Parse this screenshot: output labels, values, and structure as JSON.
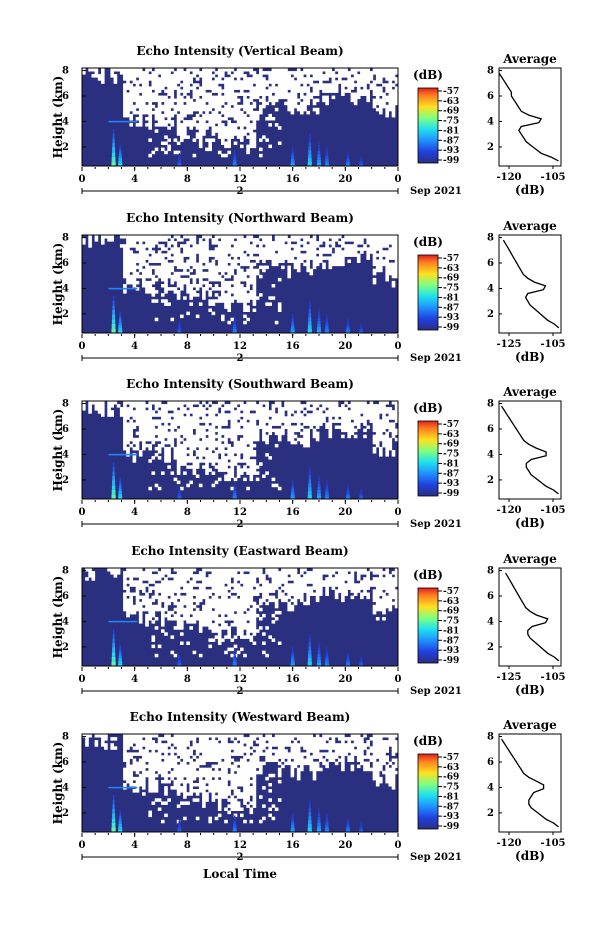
{
  "figure": {
    "xlabel": "Local Time",
    "date_label": "Sep 2021"
  },
  "chart_data": [
    {
      "type": "heatmap",
      "title": "Echo Intensity (Vertical Beam)",
      "ylabel": "Height (km)",
      "xlabel": "Local Time",
      "xticks": [
        "0",
        "4",
        "8",
        "12",
        "16",
        "20",
        "0"
      ],
      "day_label": "2",
      "date": "Sep 2021",
      "yticks": [
        "2",
        "4",
        "6",
        "8"
      ],
      "ylim": [
        0.5,
        8.2
      ],
      "xlim": [
        0,
        24
      ],
      "colorbar": {
        "title": "(dB)",
        "ticks": [
          "-57",
          "-63",
          "-69",
          "-75",
          "-81",
          "-87",
          "-93",
          "-99"
        ]
      },
      "average_profile": {
        "title": "Average",
        "xlabel": "(dB)",
        "xticks": [
          "-120",
          "-105"
        ],
        "yticks": [
          "2",
          "4",
          "6",
          "8"
        ],
        "xlim": [
          -125,
          -100
        ],
        "height": [
          0.9,
          1.2,
          1.5,
          1.8,
          2.1,
          2.4,
          2.7,
          3.0,
          3.3,
          3.6,
          3.9,
          4.2,
          4.5,
          4.8,
          5.1,
          5.4,
          5.7,
          6.0,
          6.3,
          6.6,
          6.9,
          7.2,
          7.5,
          7.8
        ],
        "db": [
          -101,
          -104,
          -108,
          -110,
          -112,
          -114,
          -115,
          -116,
          -117,
          -116,
          -109,
          -108,
          -113,
          -116,
          -117,
          -118,
          -119,
          -120,
          -120,
          -121,
          -122,
          -123,
          -124,
          -125
        ]
      }
    },
    {
      "type": "heatmap",
      "title": "Echo Intensity (Northward Beam)",
      "ylabel": "Height (km)",
      "xlabel": "Local Time",
      "xticks": [
        "0",
        "4",
        "8",
        "12",
        "16",
        "20",
        "0"
      ],
      "day_label": "2",
      "date": "Sep 2021",
      "yticks": [
        "2",
        "4",
        "6",
        "8"
      ],
      "ylim": [
        0.5,
        8.2
      ],
      "xlim": [
        0,
        24
      ],
      "colorbar": {
        "title": "(dB)",
        "ticks": [
          "-57",
          "-63",
          "-69",
          "-75",
          "-81",
          "-87",
          "-93",
          "-99"
        ]
      },
      "average_profile": {
        "title": "Average",
        "xlabel": "(dB)",
        "xticks": [
          "-125",
          "-105"
        ],
        "yticks": [
          "2",
          "4",
          "6",
          "8"
        ],
        "xlim": [
          -128,
          -100
        ],
        "height": [
          0.9,
          1.2,
          1.5,
          1.8,
          2.1,
          2.4,
          2.7,
          3.0,
          3.3,
          3.6,
          3.9,
          4.2,
          4.5,
          4.8,
          5.1,
          5.4,
          5.7,
          6.0,
          6.3,
          6.6,
          6.9,
          7.2,
          7.5,
          7.8
        ],
        "db": [
          -101,
          -103,
          -106,
          -108,
          -110,
          -112,
          -114,
          -115,
          -116,
          -115,
          -108,
          -107,
          -112,
          -115,
          -117,
          -118,
          -119,
          -120,
          -121,
          -122,
          -123,
          -124,
          -125,
          -126
        ]
      }
    },
    {
      "type": "heatmap",
      "title": "Echo Intensity (Southward Beam)",
      "ylabel": "Height (km)",
      "xlabel": "Local Time",
      "xticks": [
        "0",
        "4",
        "8",
        "12",
        "16",
        "20",
        "0"
      ],
      "day_label": "2",
      "date": "Sep 2021",
      "yticks": [
        "2",
        "4",
        "6",
        "8"
      ],
      "ylim": [
        0.5,
        8.2
      ],
      "xlim": [
        0,
        24
      ],
      "colorbar": {
        "title": "(dB)",
        "ticks": [
          "-57",
          "-63",
          "-69",
          "-75",
          "-81",
          "-87",
          "-93",
          "-99"
        ]
      },
      "average_profile": {
        "title": "Average",
        "xlabel": "(dB)",
        "xticks": [
          "-120",
          "-105"
        ],
        "yticks": [
          "2",
          "4",
          "6",
          "8"
        ],
        "xlim": [
          -125,
          -100
        ],
        "height": [
          0.9,
          1.2,
          1.5,
          1.8,
          2.1,
          2.4,
          2.7,
          3.0,
          3.3,
          3.6,
          3.9,
          4.2,
          4.5,
          4.8,
          5.1,
          5.4,
          5.7,
          6.0,
          6.3,
          6.6,
          6.9,
          7.2,
          7.5,
          7.8
        ],
        "db": [
          -101,
          -103,
          -106,
          -108,
          -110,
          -112,
          -113,
          -114,
          -114,
          -112,
          -106,
          -106,
          -110,
          -113,
          -115,
          -116,
          -117,
          -118,
          -119,
          -120,
          -121,
          -122,
          -123,
          -124
        ]
      }
    },
    {
      "type": "heatmap",
      "title": "Echo Intensity (Eastward Beam)",
      "ylabel": "Height (km)",
      "xlabel": "Local Time",
      "xticks": [
        "0",
        "4",
        "8",
        "12",
        "16",
        "20",
        "0"
      ],
      "day_label": "2",
      "date": "Sep 2021",
      "yticks": [
        "2",
        "4",
        "6",
        "8"
      ],
      "ylim": [
        0.5,
        8.2
      ],
      "xlim": [
        0,
        24
      ],
      "colorbar": {
        "title": "(dB)",
        "ticks": [
          "-57",
          "-63",
          "-69",
          "-75",
          "-81",
          "-87",
          "-93",
          "-99"
        ]
      },
      "average_profile": {
        "title": "Average",
        "xlabel": "(dB)",
        "xticks": [
          "-125",
          "-105"
        ],
        "yticks": [
          "2",
          "4",
          "6",
          "8"
        ],
        "xlim": [
          -128,
          -100
        ],
        "height": [
          0.9,
          1.2,
          1.5,
          1.8,
          2.1,
          2.4,
          2.7,
          3.0,
          3.3,
          3.6,
          3.9,
          4.2,
          4.5,
          4.8,
          5.1,
          5.4,
          5.7,
          6.0,
          6.3,
          6.6,
          6.9,
          7.2,
          7.5,
          7.8
        ],
        "db": [
          -101,
          -103,
          -106,
          -108,
          -110,
          -112,
          -114,
          -115,
          -115,
          -113,
          -107,
          -106,
          -111,
          -114,
          -116,
          -117,
          -118,
          -119,
          -120,
          -121,
          -122,
          -123,
          -124,
          -125
        ]
      }
    },
    {
      "type": "heatmap",
      "title": "Echo Intensity (Westward Beam)",
      "ylabel": "Height (km)",
      "xlabel": "Local Time",
      "xticks": [
        "0",
        "4",
        "8",
        "12",
        "16",
        "20",
        "0"
      ],
      "day_label": "2",
      "date": "Sep 2021",
      "yticks": [
        "2",
        "4",
        "6",
        "8"
      ],
      "ylim": [
        0.5,
        8.2
      ],
      "xlim": [
        0,
        24
      ],
      "colorbar": {
        "title": "(dB)",
        "ticks": [
          "-57",
          "-63",
          "-69",
          "-75",
          "-81",
          "-87",
          "-93",
          "-99"
        ]
      },
      "average_profile": {
        "title": "Average",
        "xlabel": "(dB)",
        "xticks": [
          "-120",
          "-105"
        ],
        "yticks": [
          "2",
          "4",
          "6",
          "8"
        ],
        "xlim": [
          -125,
          -100
        ],
        "height": [
          0.9,
          1.2,
          1.5,
          1.8,
          2.1,
          2.4,
          2.7,
          3.0,
          3.3,
          3.6,
          3.9,
          4.2,
          4.5,
          4.8,
          5.1,
          5.4,
          5.7,
          6.0,
          6.3,
          6.6,
          6.9,
          7.2,
          7.5,
          7.8
        ],
        "db": [
          -101,
          -103,
          -106,
          -108,
          -110,
          -112,
          -113,
          -113,
          -112,
          -111,
          -107,
          -107,
          -110,
          -113,
          -115,
          -116,
          -117,
          -118,
          -119,
          -120,
          -121,
          -122,
          -123,
          -124
        ]
      }
    }
  ]
}
